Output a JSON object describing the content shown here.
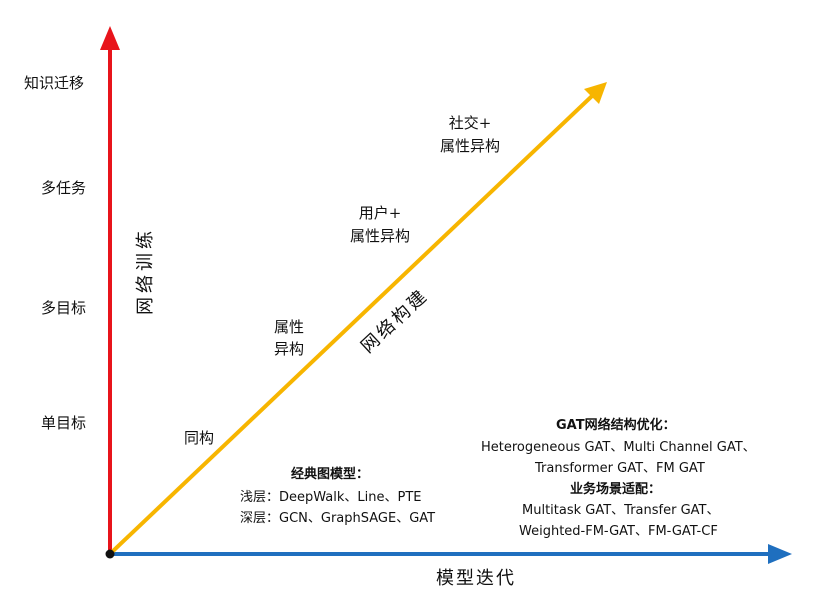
{
  "axes": {
    "y_label": "网络训练",
    "x_label": "模型迭代",
    "diag_label": "网络构建",
    "y_levels": [
      "单目标",
      "多目标",
      "多任务",
      "知识迁移"
    ],
    "diag_stages": [
      "同构",
      "属性\n异构",
      "用户+\n属性异构",
      "社交+\n属性异构"
    ]
  },
  "colors": {
    "y_axis": "#e8141b",
    "x_axis": "#1f6fbf",
    "diagonal": "#f7b500"
  },
  "classic_box": {
    "title": "经典图模型：",
    "lines": [
      "浅层：DeepWalk、Line、PTE",
      "深层：GCN、GraphSAGE、GAT"
    ]
  },
  "gat_box": {
    "title1": "GAT网络结构优化：",
    "lines1": [
      "Heterogeneous GAT、Multi Channel GAT、",
      "Transformer GAT、FM GAT"
    ],
    "title2": "业务场景适配：",
    "lines2": [
      "Multitask GAT、Transfer GAT、",
      "Weighted-FM-GAT、FM-GAT-CF"
    ]
  }
}
